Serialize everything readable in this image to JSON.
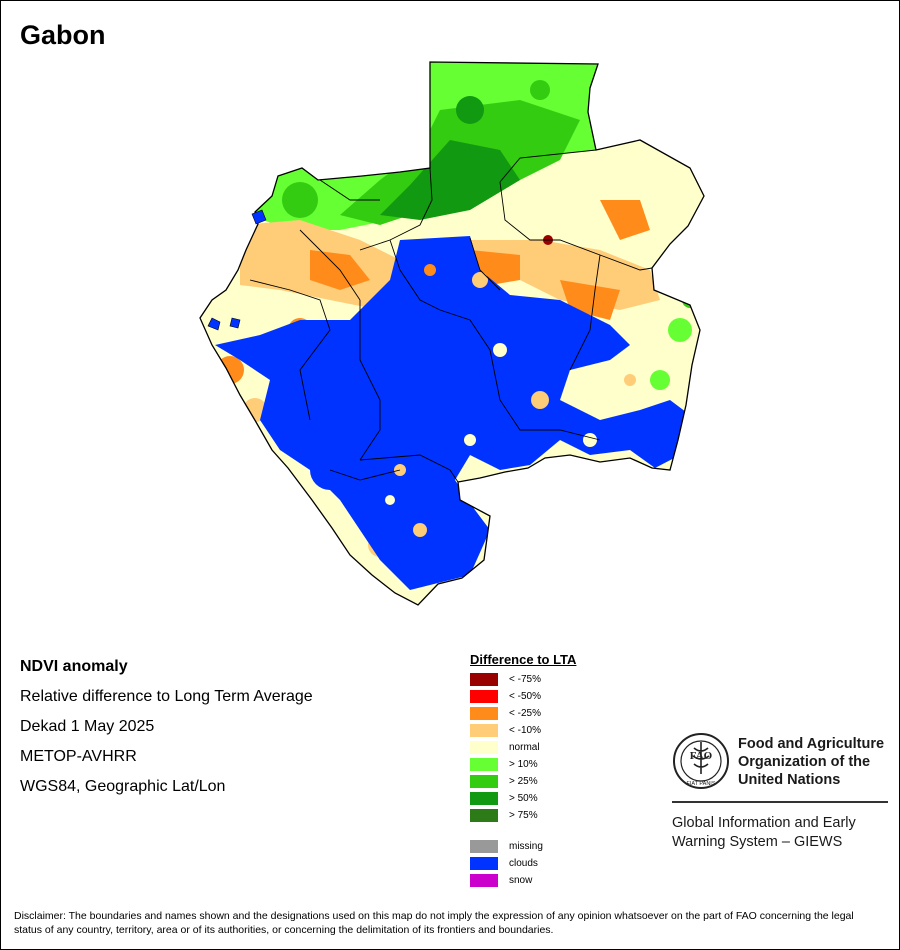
{
  "map": {
    "title": "Gabon"
  },
  "info": {
    "heading": "NDVI anomaly",
    "lines": [
      "Relative difference to Long Term Average",
      "Dekad 1 May 2025",
      "METOP-AVHRR",
      "WGS84, Geographic Lat/Lon"
    ]
  },
  "legend": {
    "title": "Difference to LTA",
    "items": [
      {
        "label": "< -75%",
        "color": "#990000"
      },
      {
        "label": "< -50%",
        "color": "#ff0000"
      },
      {
        "label": "< -25%",
        "color": "#ff8c1a"
      },
      {
        "label": "< -10%",
        "color": "#ffcc77"
      },
      {
        "label": "normal",
        "color": "#ffffcc"
      },
      {
        "label": "> 10%",
        "color": "#66ff33"
      },
      {
        "label": "> 25%",
        "color": "#33cc11"
      },
      {
        "label": "> 50%",
        "color": "#119911"
      },
      {
        "label": "> 75%",
        "color": "#2d7a18"
      }
    ],
    "extra": [
      {
        "label": "missing",
        "color": "#999999"
      },
      {
        "label": "clouds",
        "color": "#0033ff"
      },
      {
        "label": "snow",
        "color": "#cc00cc"
      }
    ]
  },
  "fao": {
    "logo_text": "FAO",
    "logo_motto": "FIAT PANIS",
    "name_lines": [
      "Food and Agriculture",
      "Organization of the",
      "United Nations"
    ],
    "giews_lines": [
      "Global Information and Early",
      "Warning System – GIEWS"
    ]
  },
  "disclaimer": "Disclaimer: The boundaries and names shown and the designations used on this map do not imply the expression of any opinion whatsoever on the part of FAO concerning the legal status of any country, territory, area or of its authorities, or concerning the delimitation of its frontiers and boundaries."
}
